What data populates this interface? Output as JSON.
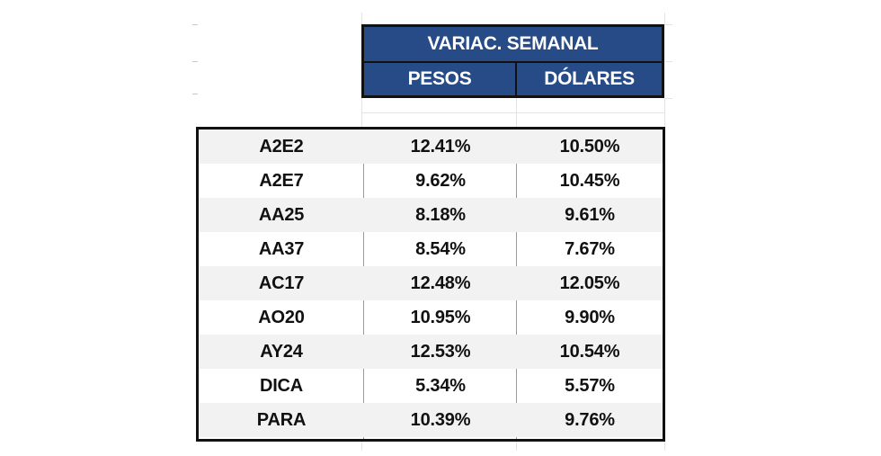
{
  "header": {
    "title": "VARIAC. SEMANAL",
    "col_pesos": "PESOS",
    "col_dolares": "DÓLARES",
    "background_color": "#274b86"
  },
  "rows": [
    {
      "ticker": "A2E2",
      "pesos": "12.41%",
      "dolares": "10.50%"
    },
    {
      "ticker": "A2E7",
      "pesos": "9.62%",
      "dolares": "10.45%"
    },
    {
      "ticker": "AA25",
      "pesos": "8.18%",
      "dolares": "9.61%"
    },
    {
      "ticker": "AA37",
      "pesos": "8.54%",
      "dolares": "7.67%"
    },
    {
      "ticker": "AC17",
      "pesos": "12.48%",
      "dolares": "12.05%"
    },
    {
      "ticker": "AO20",
      "pesos": "10.95%",
      "dolares": "9.90%"
    },
    {
      "ticker": "AY24",
      "pesos": "12.53%",
      "dolares": "10.54%"
    },
    {
      "ticker": "DICA",
      "pesos": "5.34%",
      "dolares": "5.57%"
    },
    {
      "ticker": "PARA",
      "pesos": "10.39%",
      "dolares": "9.76%"
    }
  ]
}
